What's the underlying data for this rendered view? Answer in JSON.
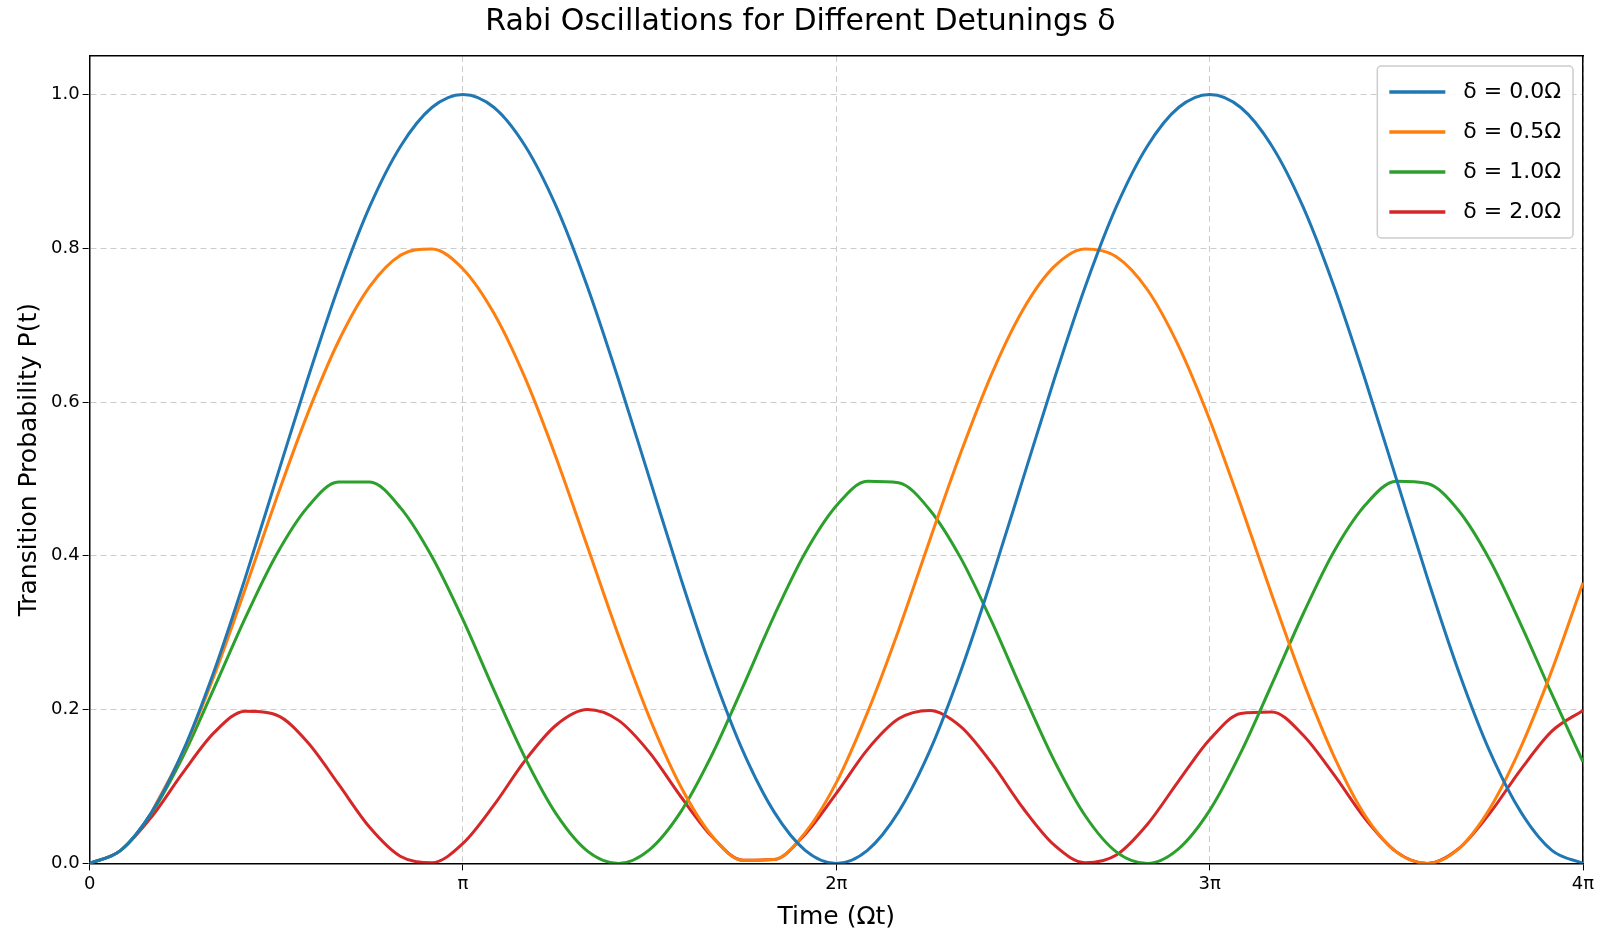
{
  "chart_data": {
    "type": "line",
    "title": "Rabi Oscillations for Different Detunings δ",
    "xlabel": "Time (Ωt)",
    "ylabel": "Transition Probability P(t)",
    "x": [
      0,
      0.2618,
      0.5236,
      0.7854,
      1.0472,
      1.309,
      1.5708,
      1.8326,
      2.0944,
      2.3562,
      2.618,
      2.8798,
      3.1416,
      3.4034,
      3.6652,
      3.927,
      4.1888,
      4.4506,
      4.7124,
      4.9742,
      5.236,
      5.4978,
      5.7596,
      6.0214,
      6.2832,
      6.545,
      6.8068,
      7.0686,
      7.3304,
      7.5922,
      7.854,
      8.1158,
      8.3776,
      8.6394,
      8.9012,
      9.163,
      9.4248,
      9.6866,
      9.9484,
      10.2102,
      10.472,
      10.7338,
      10.9956,
      11.2574,
      11.5192,
      11.781,
      12.0428,
      12.3046,
      12.5664
    ],
    "series": [
      {
        "name": "δ = 0.0Ω",
        "color": "#1f77b4",
        "values": [
          0,
          0.017,
          0.067,
          0.146,
          0.25,
          0.371,
          0.5,
          0.629,
          0.75,
          0.854,
          0.933,
          0.983,
          1,
          0.983,
          0.933,
          0.854,
          0.75,
          0.629,
          0.5,
          0.371,
          0.25,
          0.146,
          0.067,
          0.017,
          0,
          0.017,
          0.067,
          0.146,
          0.25,
          0.371,
          0.5,
          0.629,
          0.75,
          0.854,
          0.933,
          0.983,
          1,
          0.983,
          0.933,
          0.854,
          0.75,
          0.629,
          0.5,
          0.371,
          0.25,
          0.146,
          0.067,
          0.017,
          0
        ]
      },
      {
        "name": "δ = 0.5Ω",
        "color": "#ff7f0e",
        "values": [
          null,
          null,
          0.067,
          0.145,
          0.244,
          0.357,
          0.474,
          0.584,
          0.679,
          0.75,
          0.791,
          0.799,
          0.773,
          0.715,
          0.631,
          0.527,
          0.412,
          0.296,
          0.189,
          0.1,
          0.036,
          0.004,
          0.005,
          0.04,
          0.105,
          0.196,
          0.303,
          0.42,
          0.534,
          0.637,
          0.72,
          0.776,
          0.799,
          0.789,
          0.746,
          0.673,
          0.577,
          0.466,
          0.349,
          0.237,
          0.139,
          0.062,
          0.015,
          0,
          0.019,
          0.071,
          0.151,
          0.251,
          0.365
        ]
      },
      {
        "name": "δ = 1.0Ω",
        "color": "#2ca02c",
        "values": [
          0,
          0.017,
          0.066,
          0.139,
          0.228,
          0.319,
          0.401,
          0.463,
          0.496,
          0.496,
          0.462,
          0.399,
          0.317,
          0.225,
          0.137,
          0.064,
          0.016,
          0,
          0.018,
          0.067,
          0.141,
          0.23,
          0.322,
          0.404,
          0.465,
          0.497,
          0.495,
          0.46,
          0.397,
          0.314,
          0.222,
          0.134,
          0.062,
          0.015,
          0,
          0.019,
          0.069,
          0.144,
          0.233,
          0.324,
          0.406,
          0.466,
          0.497,
          0.494,
          0.459,
          0.395,
          0.311,
          0.22,
          0.132
        ]
      },
      {
        "name": "δ = 2.0Ω",
        "color": "#d62728",
        "values": [
          0,
          0.017,
          0.061,
          0.118,
          0.17,
          0.198,
          0.193,
          0.158,
          0.103,
          0.047,
          0.009,
          0.001,
          0.026,
          0.076,
          0.134,
          0.18,
          0.2,
          0.186,
          0.144,
          0.087,
          0.035,
          0.004,
          0.005,
          0.038,
          0.091,
          0.148,
          0.188,
          0.199,
          0.178,
          0.13,
          0.072,
          0.024,
          0.001,
          0.011,
          0.051,
          0.107,
          0.161,
          0.195,
          0.197,
          0.167,
          0.115,
          0.058,
          0.015,
          0,
          0.019,
          0.065,
          0.122,
          0.172,
          0.199
        ]
      }
    ],
    "xlim": [
      0,
      12.5664
    ],
    "xticks": [
      0,
      {
        "value": 3.1416,
        "label": "π"
      },
      {
        "value": 6.2832,
        "label": "2π"
      },
      {
        "value": 9.4248,
        "label": "3π"
      },
      {
        "value": 12.5664,
        "label": "4π"
      }
    ],
    "ylim": [
      0,
      1.05
    ],
    "yticks": [
      {
        "value": 0,
        "label": "0.0"
      },
      {
        "value": 0.2,
        "label": "0.2"
      },
      {
        "value": 0.4,
        "label": "0.4"
      },
      {
        "value": 0.6,
        "label": "0.6"
      },
      {
        "value": 0.8,
        "label": "0.8"
      },
      {
        "value": 1,
        "label": "1.0"
      }
    ],
    "grid": true,
    "legend": "top right",
    "line_style": "solid"
  }
}
